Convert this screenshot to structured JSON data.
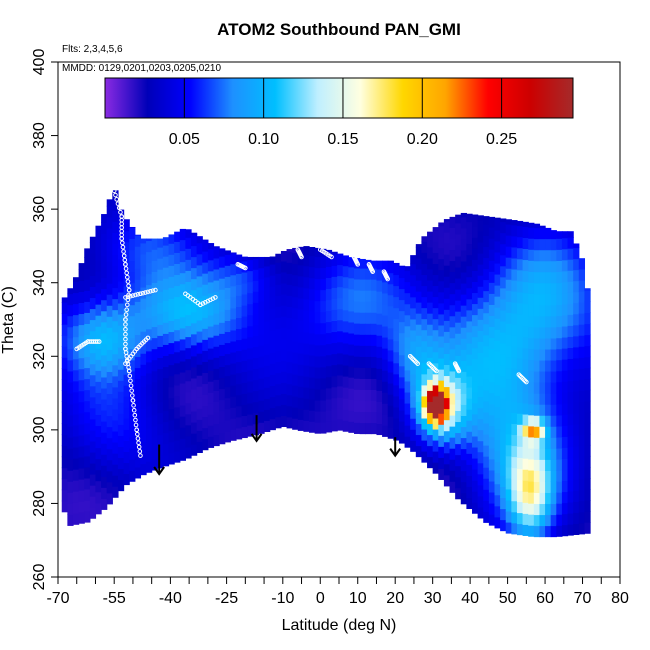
{
  "chart_data": {
    "type": "heatmap",
    "title": "ATOM2 Southbound PAN_GMI",
    "flights_label": "Flts: 2,3,4,5,6",
    "dates_label": "MMDD: 0129,0201,0203,0205,0210",
    "xlabel": "Latitude (deg N)",
    "ylabel": "Theta (C)",
    "xlim": [
      -70,
      80
    ],
    "ylim": [
      260,
      400
    ],
    "x_ticks": [
      "-70",
      "-55",
      "-40",
      "-25",
      "-10",
      "0",
      "10",
      "20",
      "30",
      "40",
      "50",
      "60",
      "70",
      "80"
    ],
    "x_tick_values": [
      -70,
      -55,
      -40,
      -25,
      -10,
      0,
      10,
      20,
      30,
      40,
      50,
      60,
      70,
      80
    ],
    "x_minor_values": [
      -65,
      -60,
      -50,
      -45,
      -35,
      -30,
      -20,
      -15,
      -5,
      5,
      15,
      25,
      35,
      45,
      55,
      65,
      75
    ],
    "y_ticks": [
      "260",
      "280",
      "300",
      "320",
      "340",
      "360",
      "380",
      "400"
    ],
    "y_tick_values": [
      260,
      280,
      300,
      320,
      340,
      360,
      380,
      400
    ],
    "colorbar": {
      "range": [
        0.0,
        0.295
      ],
      "ticks": [
        "0.05",
        "0.10",
        "0.15",
        "0.20",
        "0.25"
      ],
      "tick_values": [
        0.05,
        0.1,
        0.15,
        0.2,
        0.25
      ],
      "colors": [
        "#8a2be2",
        "#0000b8",
        "#0000ff",
        "#1e90ff",
        "#00bfff",
        "#bfefff",
        "#ffffe0",
        "#ffd700",
        "#ffa500",
        "#ff0000",
        "#cc0000",
        "#a52a2a"
      ]
    },
    "field_background": 0.02,
    "domain_top": [
      [
        -68,
        336
      ],
      [
        -65,
        342
      ],
      [
        -62,
        350
      ],
      [
        -58,
        358
      ],
      [
        -55,
        366
      ],
      [
        -53,
        359
      ],
      [
        -48,
        352
      ],
      [
        -42,
        352
      ],
      [
        -36,
        355
      ],
      [
        -28,
        350
      ],
      [
        -20,
        347
      ],
      [
        -13,
        347
      ],
      [
        -9,
        349
      ],
      [
        -4,
        350
      ],
      [
        2,
        349
      ],
      [
        8,
        347
      ],
      [
        14,
        346
      ],
      [
        19,
        346
      ],
      [
        23,
        344
      ],
      [
        27,
        352
      ],
      [
        33,
        357
      ],
      [
        38,
        359
      ],
      [
        45,
        358
      ],
      [
        52,
        357
      ],
      [
        58,
        356
      ],
      [
        63,
        354
      ],
      [
        67,
        354
      ],
      [
        70,
        346
      ],
      [
        72,
        334
      ],
      [
        72,
        275
      ]
    ],
    "domain_bottom": [
      [
        72,
        272
      ],
      [
        63,
        271
      ],
      [
        57,
        271
      ],
      [
        50,
        272
      ],
      [
        44,
        275
      ],
      [
        37,
        281
      ],
      [
        31,
        288
      ],
      [
        25,
        294
      ],
      [
        21,
        297
      ],
      [
        15,
        299
      ],
      [
        10,
        299
      ],
      [
        5,
        300
      ],
      [
        0,
        299
      ],
      [
        -6,
        300
      ],
      [
        -10,
        301
      ],
      [
        -16,
        299
      ],
      [
        -24,
        297
      ],
      [
        -30,
        295
      ],
      [
        -36,
        292
      ],
      [
        -42,
        290
      ],
      [
        -47,
        288
      ],
      [
        -52,
        285
      ],
      [
        -57,
        279
      ],
      [
        -62,
        275
      ],
      [
        -67,
        274
      ],
      [
        -69,
        280
      ]
    ],
    "blobs": [
      {
        "x": 31,
        "y": 307,
        "sx": 2.0,
        "sy": 3.0,
        "v": 0.27
      },
      {
        "x": 32,
        "y": 306,
        "sx": 5.0,
        "sy": 7.0,
        "v": 0.1
      },
      {
        "x": 57,
        "y": 300,
        "sx": 2.0,
        "sy": 2.0,
        "v": 0.12
      },
      {
        "x": 56,
        "y": 283,
        "sx": 4.0,
        "sy": 9.0,
        "v": 0.1
      },
      {
        "x": 52,
        "y": 295,
        "sx": 10.0,
        "sy": 15.0,
        "v": 0.07
      },
      {
        "x": 47,
        "y": 320,
        "sx": 12.0,
        "sy": 12.0,
        "v": 0.05
      },
      {
        "x": 60,
        "y": 340,
        "sx": 10.0,
        "sy": 12.0,
        "v": 0.045
      },
      {
        "x": -35,
        "y": 332,
        "sx": 10.0,
        "sy": 7.0,
        "v": 0.06
      },
      {
        "x": -58,
        "y": 325,
        "sx": 7.0,
        "sy": 7.0,
        "v": 0.055
      },
      {
        "x": -47,
        "y": 350,
        "sx": 10.0,
        "sy": 8.0,
        "v": 0.04
      },
      {
        "x": -20,
        "y": 342,
        "sx": 6.0,
        "sy": 5.0,
        "v": 0.03
      },
      {
        "x": 10,
        "y": 335,
        "sx": 10.0,
        "sy": 10.0,
        "v": 0.03
      },
      {
        "x": -55,
        "y": 300,
        "sx": 10.0,
        "sy": 12.0,
        "v": 0.035
      },
      {
        "x": 25,
        "y": 320,
        "sx": 5.0,
        "sy": 8.0,
        "v": 0.04
      }
    ],
    "arrows": [
      {
        "x": -43,
        "y_top": 296,
        "y_tip": 288
      },
      {
        "x": -17,
        "y_top": 304,
        "y_tip": 297
      },
      {
        "x": 20,
        "y_top": 298,
        "y_tip": 293
      }
    ],
    "flight_tracks": [
      [
        [
          -55,
          365
        ],
        [
          -53,
          358
        ],
        [
          -53,
          352
        ],
        [
          -52,
          345
        ],
        [
          -51,
          338
        ],
        [
          -52,
          330
        ],
        [
          -52,
          322
        ],
        [
          -51,
          316
        ],
        [
          -50,
          308
        ],
        [
          -49,
          300
        ],
        [
          -48,
          293
        ]
      ],
      [
        [
          -65,
          322
        ],
        [
          -62,
          324
        ],
        [
          -59,
          324
        ]
      ],
      [
        [
          -52,
          318
        ],
        [
          -49,
          322
        ],
        [
          -46,
          325
        ]
      ],
      [
        [
          -52,
          336
        ],
        [
          -48,
          337
        ],
        [
          -44,
          338
        ]
      ],
      [
        [
          -36,
          337
        ],
        [
          -32,
          334
        ],
        [
          -28,
          336
        ]
      ],
      [
        [
          -22,
          345
        ],
        [
          -20,
          344
        ]
      ],
      [
        [
          -16,
          350
        ],
        [
          -13,
          351
        ],
        [
          -10,
          351
        ]
      ],
      [
        [
          -6,
          349
        ],
        [
          -5,
          347
        ]
      ],
      [
        [
          0,
          349
        ],
        [
          3,
          347
        ]
      ],
      [
        [
          9,
          347
        ],
        [
          10,
          345
        ]
      ],
      [
        [
          13,
          345
        ],
        [
          14,
          343
        ]
      ],
      [
        [
          17,
          343
        ],
        [
          18,
          341
        ]
      ],
      [
        [
          24,
          320
        ],
        [
          26,
          318
        ]
      ],
      [
        [
          29,
          318
        ],
        [
          31,
          316
        ]
      ],
      [
        [
          36,
          318
        ],
        [
          37,
          316
        ]
      ],
      [
        [
          53,
          315
        ],
        [
          55,
          313
        ]
      ]
    ]
  }
}
